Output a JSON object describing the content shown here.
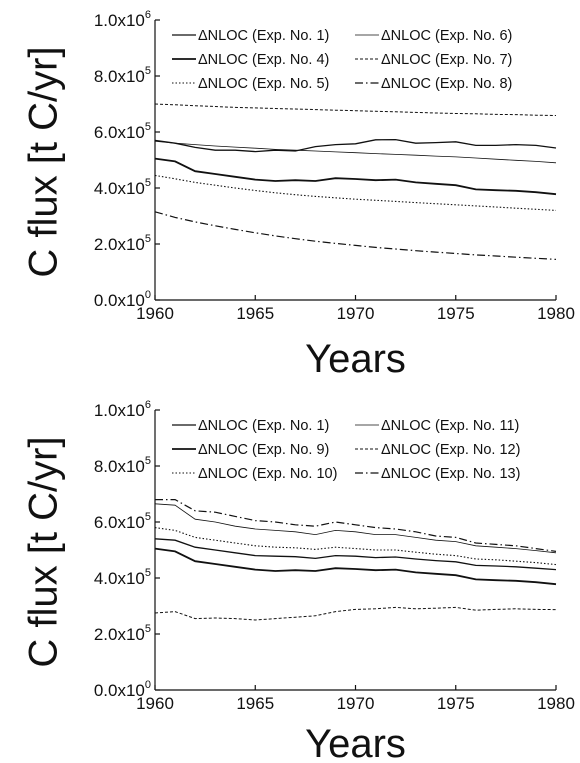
{
  "chart_data": [
    {
      "type": "line",
      "title": "",
      "xlabel": "Years",
      "ylabel": "C flux [t C/yr]",
      "xlim": [
        1960,
        1980
      ],
      "ylim": [
        0,
        1000000
      ],
      "x_ticks": [
        "1960",
        "1965",
        "1970",
        "1975",
        "1980"
      ],
      "y_ticks": [
        {
          "mant": "0.0x10",
          "exp": "0"
        },
        {
          "mant": "2.0x10",
          "exp": "5"
        },
        {
          "mant": "4.0x10",
          "exp": "5"
        },
        {
          "mant": "6.0x10",
          "exp": "5"
        },
        {
          "mant": "8.0x10",
          "exp": "5"
        },
        {
          "mant": "1.0x10",
          "exp": "6"
        }
      ],
      "legend_position": "top",
      "x": [
        1960,
        1961,
        1962,
        1963,
        1964,
        1965,
        1966,
        1967,
        1968,
        1969,
        1970,
        1971,
        1972,
        1973,
        1974,
        1975,
        1976,
        1977,
        1978,
        1979,
        1980
      ],
      "series": [
        {
          "name": "ΔNLOC (Exp. No. 1)",
          "values": [
            570000,
            560000,
            545000,
            535000,
            535000,
            530000,
            535000,
            532000,
            548000,
            555000,
            558000,
            572000,
            573000,
            560000,
            562000,
            565000,
            552000,
            552000,
            555000,
            552000,
            543000
          ]
        },
        {
          "name": "ΔNLOC (Exp. No. 4)",
          "values": [
            505000,
            495000,
            460000,
            450000,
            440000,
            430000,
            425000,
            428000,
            425000,
            435000,
            432000,
            428000,
            430000,
            420000,
            415000,
            410000,
            395000,
            392000,
            390000,
            385000,
            378000
          ]
        },
        {
          "name": "ΔNLOC (Exp. No. 5)",
          "values": [
            445000,
            433000,
            420000,
            410000,
            400000,
            391000,
            383000,
            376000,
            370000,
            365000,
            360000,
            356000,
            352000,
            348000,
            344000,
            340000,
            336000,
            332000,
            328000,
            324000,
            320000
          ]
        },
        {
          "name": "ΔNLOC (Exp. No. 6)",
          "values": [
            567000,
            560000,
            555000,
            550000,
            546000,
            542000,
            538000,
            535000,
            532000,
            529000,
            526000,
            523000,
            520000,
            517000,
            514000,
            511000,
            507000,
            503000,
            499000,
            495000,
            490000
          ]
        },
        {
          "name": "ΔNLOC (Exp. No. 7)",
          "values": [
            700000,
            697000,
            694000,
            691000,
            688000,
            686000,
            684000,
            682000,
            680000,
            678000,
            676000,
            674000,
            672000,
            670000,
            668000,
            666000,
            665000,
            663000,
            662000,
            660000,
            659000
          ]
        },
        {
          "name": "ΔNLOC (Exp. No. 8)",
          "values": [
            315000,
            295000,
            279000,
            265000,
            252000,
            240000,
            229000,
            219000,
            210000,
            202000,
            195000,
            188000,
            182000,
            176000,
            171000,
            166000,
            161000,
            157000,
            153000,
            149000,
            145000
          ]
        }
      ]
    },
    {
      "type": "line",
      "title": "",
      "xlabel": "Years",
      "ylabel": "C flux [t C/yr]",
      "xlim": [
        1960,
        1980
      ],
      "ylim": [
        0,
        1000000
      ],
      "x_ticks": [
        "1960",
        "1965",
        "1970",
        "1975",
        "1980"
      ],
      "y_ticks": [
        {
          "mant": "0.0x10",
          "exp": "0"
        },
        {
          "mant": "2.0x10",
          "exp": "5"
        },
        {
          "mant": "4.0x10",
          "exp": "5"
        },
        {
          "mant": "6.0x10",
          "exp": "5"
        },
        {
          "mant": "8.0x10",
          "exp": "5"
        },
        {
          "mant": "1.0x10",
          "exp": "6"
        }
      ],
      "legend_position": "top",
      "x": [
        1960,
        1961,
        1962,
        1963,
        1964,
        1965,
        1966,
        1967,
        1968,
        1969,
        1970,
        1971,
        1972,
        1973,
        1974,
        1975,
        1976,
        1977,
        1978,
        1979,
        1980
      ],
      "series": [
        {
          "name": "ΔNLOC (Exp. No. 1)",
          "values": [
            540000,
            535000,
            510000,
            500000,
            490000,
            480000,
            478000,
            476000,
            470000,
            480000,
            478000,
            473000,
            475000,
            468000,
            462000,
            458000,
            445000,
            443000,
            440000,
            435000,
            430000
          ]
        },
        {
          "name": "ΔNLOC (Exp. No. 9)",
          "values": [
            505000,
            495000,
            460000,
            450000,
            440000,
            430000,
            425000,
            428000,
            425000,
            435000,
            432000,
            428000,
            430000,
            420000,
            415000,
            410000,
            395000,
            392000,
            390000,
            385000,
            378000
          ]
        },
        {
          "name": "ΔNLOC (Exp. No. 10)",
          "values": [
            580000,
            570000,
            545000,
            535000,
            525000,
            515000,
            510000,
            508000,
            502000,
            510000,
            505000,
            500000,
            500000,
            492000,
            485000,
            480000,
            468000,
            465000,
            460000,
            455000,
            448000
          ]
        },
        {
          "name": "ΔNLOC (Exp. No. 11)",
          "values": [
            665000,
            660000,
            610000,
            600000,
            585000,
            575000,
            570000,
            565000,
            555000,
            570000,
            565000,
            555000,
            555000,
            545000,
            535000,
            530000,
            515000,
            510000,
            505000,
            498000,
            490000
          ]
        },
        {
          "name": "ΔNLOC (Exp. No. 12)",
          "values": [
            275000,
            280000,
            255000,
            257000,
            255000,
            250000,
            255000,
            260000,
            265000,
            280000,
            288000,
            290000,
            295000,
            290000,
            292000,
            295000,
            285000,
            288000,
            290000,
            288000,
            287000
          ]
        },
        {
          "name": "ΔNLOC (Exp. No. 13)",
          "values": [
            680000,
            680000,
            640000,
            635000,
            620000,
            605000,
            600000,
            590000,
            585000,
            600000,
            590000,
            580000,
            575000,
            565000,
            550000,
            545000,
            525000,
            520000,
            515000,
            505000,
            495000
          ]
        }
      ]
    }
  ]
}
